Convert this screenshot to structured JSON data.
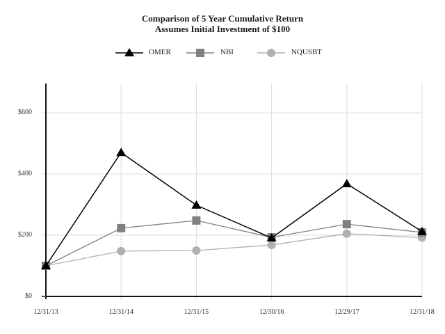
{
  "chart_data": {
    "type": "line",
    "title": "Comparison of 5 Year Cumulative Return",
    "subtitle": "Assumes Initial Investment of $100",
    "xlabel": "",
    "ylabel": "",
    "categories": [
      "12/31/13",
      "12/31/14",
      "12/31/15",
      "12/30/16",
      "12/29/17",
      "12/31/18"
    ],
    "yticks": [
      "$0",
      "$200",
      "$400",
      "$600"
    ],
    "ylim": [
      0,
      700
    ],
    "grid": true,
    "legend_position": "top",
    "series": [
      {
        "name": "OMER",
        "marker": "triangle",
        "color": "#000000",
        "values": [
          100,
          470,
          298,
          191,
          368,
          212
        ]
      },
      {
        "name": "NBI",
        "marker": "square",
        "color": "#808080",
        "values": [
          100,
          223,
          248,
          193,
          236,
          209
        ]
      },
      {
        "name": "NQUSBT",
        "marker": "circle",
        "color": "#b0b0b0",
        "values": [
          100,
          148,
          150,
          168,
          205,
          192
        ]
      }
    ]
  },
  "legend": {
    "omer": "OMER",
    "nbi": "NBI",
    "nqusbt": "NQUSBT"
  }
}
